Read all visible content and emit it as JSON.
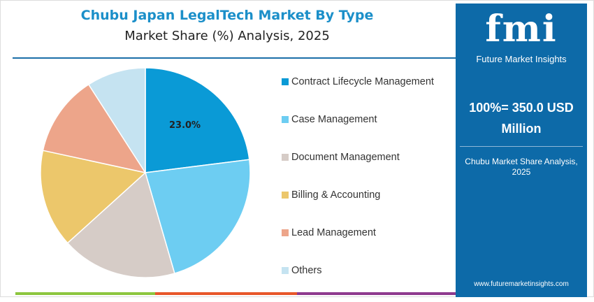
{
  "title": "Chubu Japan LegalTech Market By Type",
  "subtitle": "Market Share (%) Analysis, 2025",
  "chart_data": {
    "type": "pie",
    "title": "Chubu Japan LegalTech Market By Type",
    "subtitle": "Market Share (%) Analysis, 2025",
    "categories": [
      "Contract Lifecycle Management",
      "Case Management",
      "Document Management",
      "Billing & Accounting",
      "Lead Management",
      "Others"
    ],
    "values": [
      23.0,
      22.5,
      17.8,
      15.1,
      12.5,
      9.1
    ],
    "colors": [
      "#0a9ad6",
      "#6dcdf2",
      "#d6ccc7",
      "#ecc76b",
      "#eda58a",
      "#c5e3f1"
    ],
    "data_labels": [
      "23.0%",
      "",
      "",
      "",
      "",
      ""
    ],
    "legend_position": "right"
  },
  "panel": {
    "logo": "fmi",
    "logo_sub": "Future Market Insights",
    "total": "100%= 350.0 USD Million",
    "caption": "Chubu Market Share Analysis, 2025",
    "url": "www.futuremarketinsights.com",
    "bg": "#0d6aa8"
  }
}
